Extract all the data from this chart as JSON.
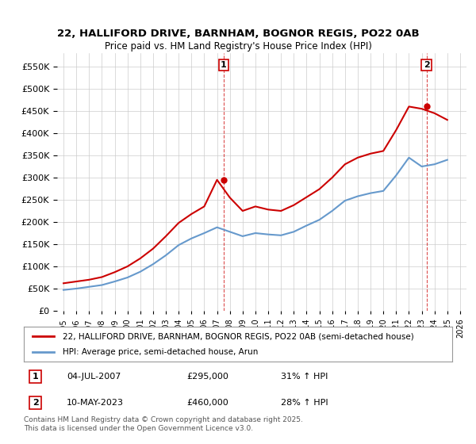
{
  "title": "22, HALLIFORD DRIVE, BARNHAM, BOGNOR REGIS, PO22 0AB",
  "subtitle": "Price paid vs. HM Land Registry's House Price Index (HPI)",
  "legend_line1": "22, HALLIFORD DRIVE, BARNHAM, BOGNOR REGIS, PO22 0AB (semi-detached house)",
  "legend_line2": "HPI: Average price, semi-detached house, Arun",
  "footnote": "Contains HM Land Registry data © Crown copyright and database right 2025.\nThis data is licensed under the Open Government Licence v3.0.",
  "marker1_label": "1",
  "marker1_date": "04-JUL-2007",
  "marker1_price": "£295,000",
  "marker1_hpi": "31% ↑ HPI",
  "marker1_x": 2007.5,
  "marker2_label": "2",
  "marker2_date": "10-MAY-2023",
  "marker2_price": "£460,000",
  "marker2_hpi": "28% ↑ HPI",
  "marker2_x": 2023.37,
  "red_color": "#cc0000",
  "blue_color": "#6699cc",
  "background_color": "#ffffff",
  "grid_color": "#cccccc",
  "ylim": [
    0,
    580000
  ],
  "yticks": [
    0,
    50000,
    100000,
    150000,
    200000,
    250000,
    300000,
    350000,
    400000,
    450000,
    500000,
    550000
  ],
  "hpi_years": [
    1995,
    1996,
    1997,
    1998,
    1999,
    2000,
    2001,
    2002,
    2003,
    2004,
    2005,
    2006,
    2007,
    2008,
    2009,
    2010,
    2011,
    2012,
    2013,
    2014,
    2015,
    2016,
    2017,
    2018,
    2019,
    2020,
    2021,
    2022,
    2023,
    2024,
    2025
  ],
  "hpi_values": [
    47000,
    50000,
    54000,
    58000,
    66000,
    75000,
    88000,
    105000,
    125000,
    148000,
    163000,
    175000,
    188000,
    178000,
    168000,
    175000,
    172000,
    170000,
    178000,
    192000,
    205000,
    225000,
    248000,
    258000,
    265000,
    270000,
    305000,
    345000,
    325000,
    330000,
    340000
  ],
  "price_years": [
    1995,
    1996,
    1997,
    1998,
    1999,
    2000,
    2001,
    2002,
    2003,
    2004,
    2005,
    2006,
    2007,
    2008,
    2009,
    2010,
    2011,
    2012,
    2013,
    2014,
    2015,
    2016,
    2017,
    2018,
    2019,
    2020,
    2021,
    2022,
    2023,
    2024,
    2025
  ],
  "price_values": [
    62000,
    66000,
    70000,
    76000,
    87000,
    100000,
    118000,
    140000,
    168000,
    198000,
    218000,
    235000,
    295000,
    255000,
    225000,
    235000,
    228000,
    225000,
    238000,
    256000,
    274000,
    300000,
    330000,
    345000,
    354000,
    360000,
    407000,
    460000,
    455000,
    445000,
    430000
  ],
  "sale_years": [
    2007.5,
    2023.37
  ],
  "sale_prices": [
    295000,
    460000
  ]
}
